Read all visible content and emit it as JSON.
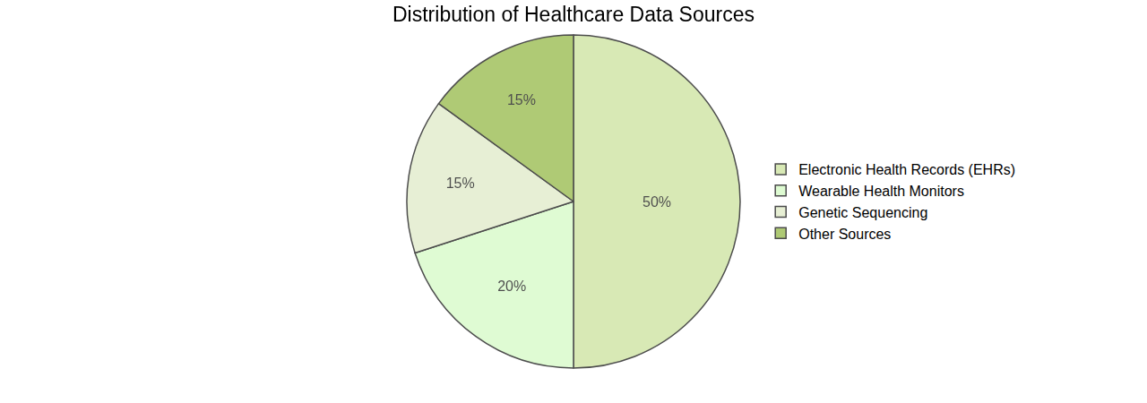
{
  "chart_data": {
    "type": "pie",
    "title": "Distribution of Healthcare Data Sources",
    "categories": [
      "Electronic Health Records (EHRs)",
      "Wearable Health Monitors",
      "Genetic Sequencing",
      "Other Sources"
    ],
    "values": [
      50,
      20,
      15,
      15
    ],
    "value_labels": [
      "50%",
      "20%",
      "15%",
      "15%"
    ],
    "colors": [
      "#c8e096",
      "#d1fac0",
      "#dde9c3",
      "#8db33a"
    ],
    "data_labels": true,
    "legend": "right"
  }
}
